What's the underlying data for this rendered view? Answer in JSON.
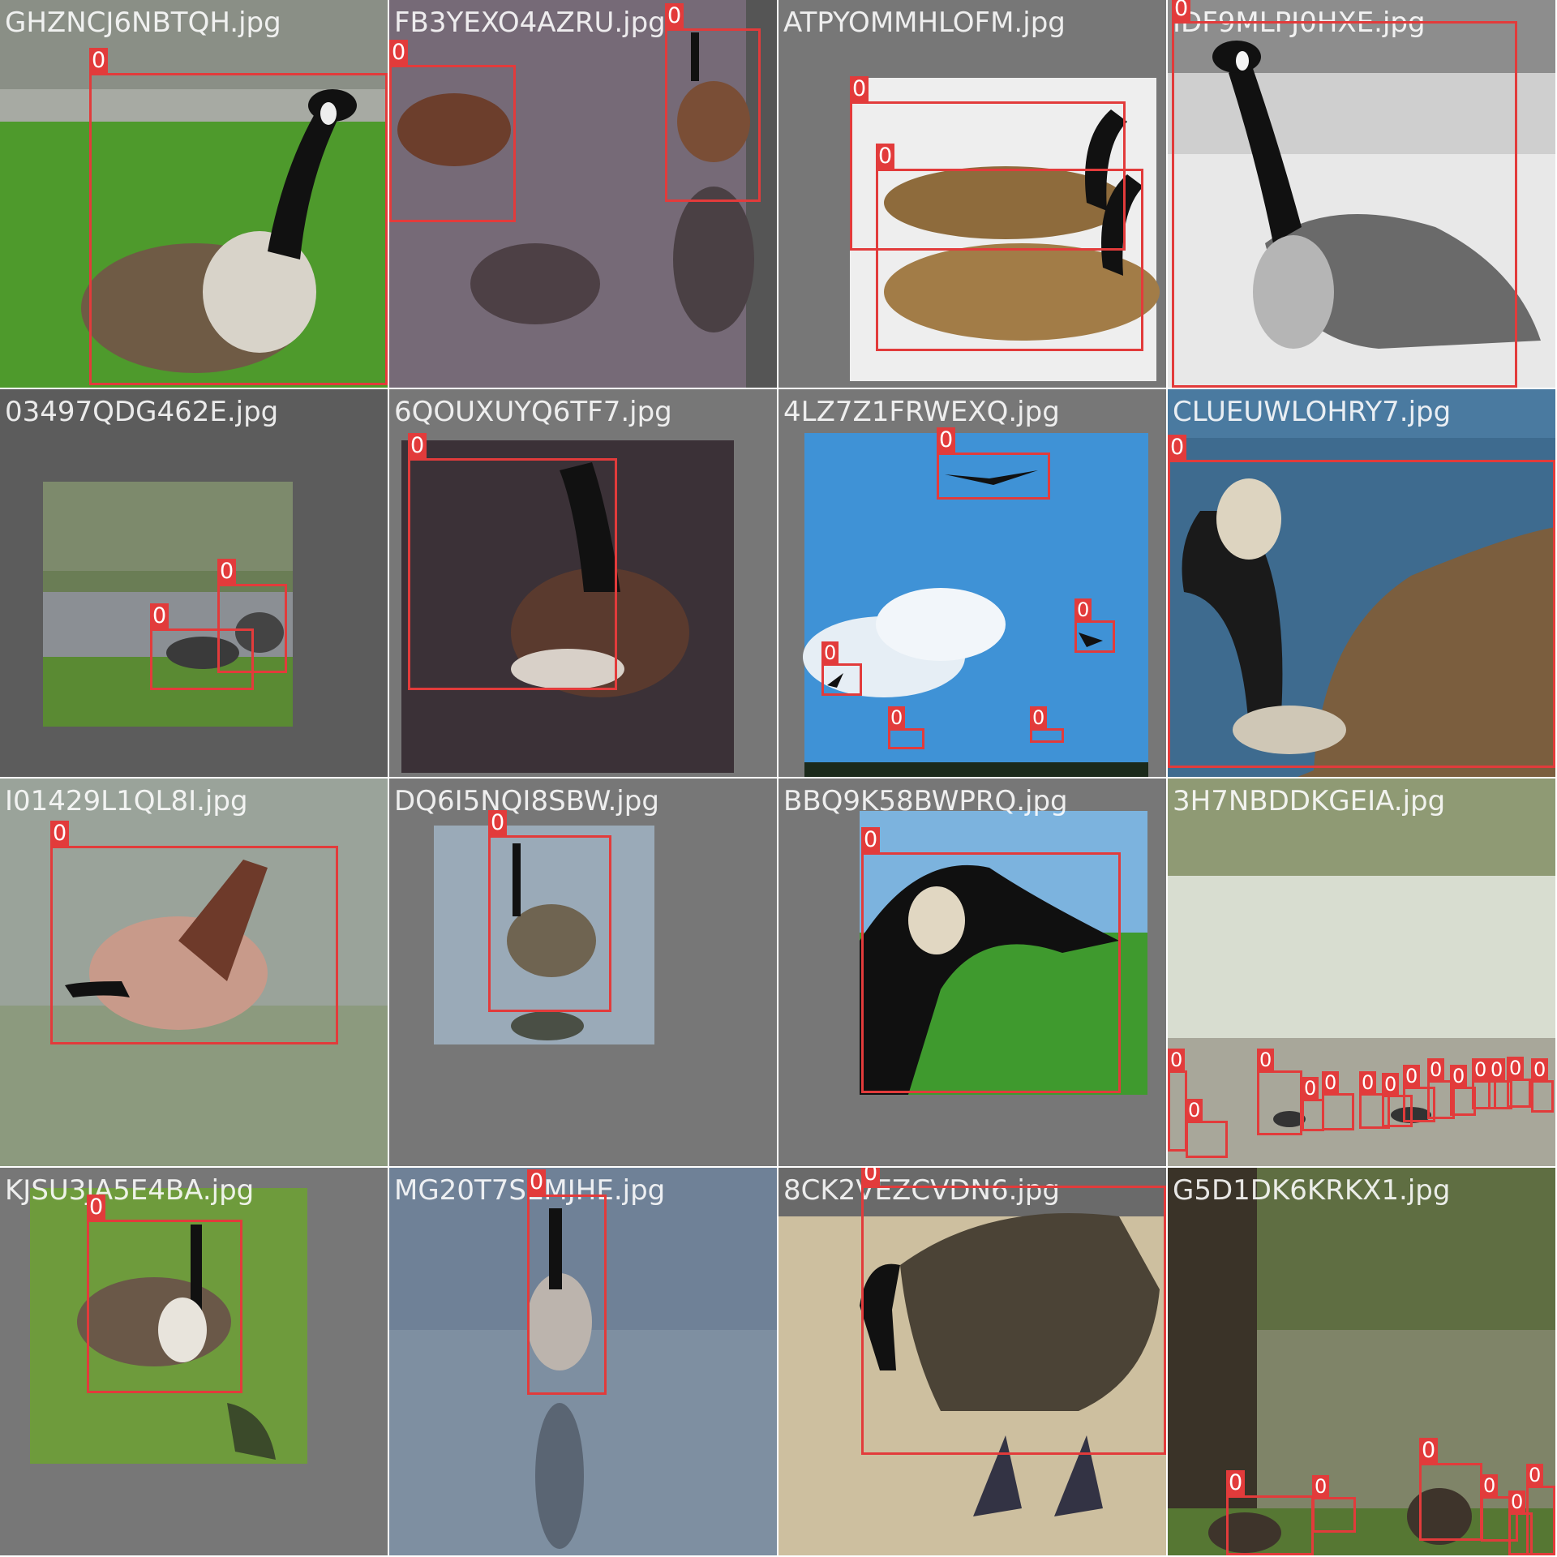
{
  "colors": {
    "box": "#e23b3b",
    "label_text": "#ffffff",
    "pad": "#777777"
  },
  "class_label": "0",
  "tiles": [
    {
      "filename": "GHZNCJ6NBTQH.jpg",
      "scene": "grass"
    },
    {
      "filename": "FB3YEXO4AZRU.jpg",
      "scene": "wet"
    },
    {
      "filename": "ATPYOMMHLOFM.jpg",
      "scene": "snow"
    },
    {
      "filename": "IDF9MLPJ0HXE.jpg",
      "scene": "mono"
    },
    {
      "filename": "03497QDG462E.jpg",
      "scene": "park"
    },
    {
      "filename": "6QOUXUYQ6TF7.jpg",
      "scene": "darkwater"
    },
    {
      "filename": "4LZ7Z1FRWEXQ.jpg",
      "scene": "sky"
    },
    {
      "filename": "CLUEUWLOHRY7.jpg",
      "scene": "bluewater"
    },
    {
      "filename": "I01429L1QL8I.jpg",
      "scene": "blur"
    },
    {
      "filename": "DQ6I5NQI8SBW.jpg",
      "scene": "ripple"
    },
    {
      "filename": "BBQ9K58BWPRQ.jpg",
      "scene": "closeup"
    },
    {
      "filename": "3H7NBDDKGEIA.jpg",
      "scene": "lake"
    },
    {
      "filename": "KJSU3JA5E4BA.jpg",
      "scene": "lawn"
    },
    {
      "filename": "MG20T7SEMJHE.jpg",
      "scene": "ice"
    },
    {
      "filename": "8CK2VEZCVDN6.jpg",
      "scene": "sand"
    },
    {
      "filename": "G5D1DK6KRKX1.jpg",
      "scene": "trees"
    }
  ]
}
